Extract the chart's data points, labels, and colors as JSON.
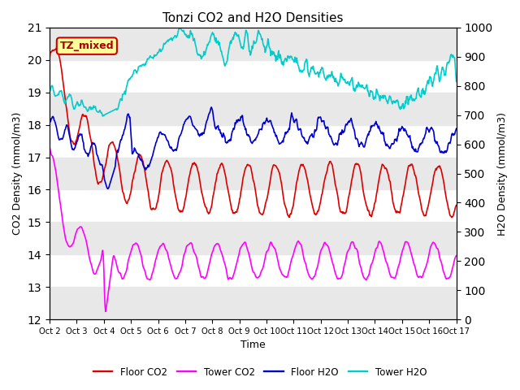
{
  "title": "Tonzi CO2 and H2O Densities",
  "xlabel": "Time",
  "ylabel_left": "CO2 Density (mmol/m3)",
  "ylabel_right": "H2O Density (mmol/m3)",
  "ylim_left": [
    12.0,
    21.0
  ],
  "ylim_right": [
    0,
    1000
  ],
  "yticks_left": [
    12.0,
    13.0,
    14.0,
    15.0,
    16.0,
    17.0,
    18.0,
    19.0,
    20.0,
    21.0
  ],
  "yticks_right": [
    0,
    100,
    200,
    300,
    400,
    500,
    600,
    700,
    800,
    900,
    1000
  ],
  "xtick_labels": [
    "Oct 2",
    "Oct 3",
    "Oct 4",
    "Oct 5",
    "Oct 6",
    "Oct 7",
    "Oct 8",
    "Oct 9",
    "Oct 10",
    "Oct 11",
    "Oct 12",
    "Oct 13",
    "Oct 14",
    "Oct 15",
    "Oct 16",
    "Oct 17"
  ],
  "colors": {
    "floor_co2": "#dd0000",
    "tower_co2": "#ff00ff",
    "floor_h2o": "#0000cc",
    "tower_h2o": "#00cccc"
  },
  "legend_labels": [
    "Floor CO2",
    "Tower CO2",
    "Floor H2O",
    "Tower H2O"
  ],
  "annotation_text": "TZ_mixed",
  "annotation_bg": "#ffff99",
  "annotation_edge": "#cc0000",
  "gray_band_color": "#e8e8e8",
  "background_color": "#ffffff",
  "linewidth": 1.2,
  "n_days": 15,
  "pts_per_day": 48
}
